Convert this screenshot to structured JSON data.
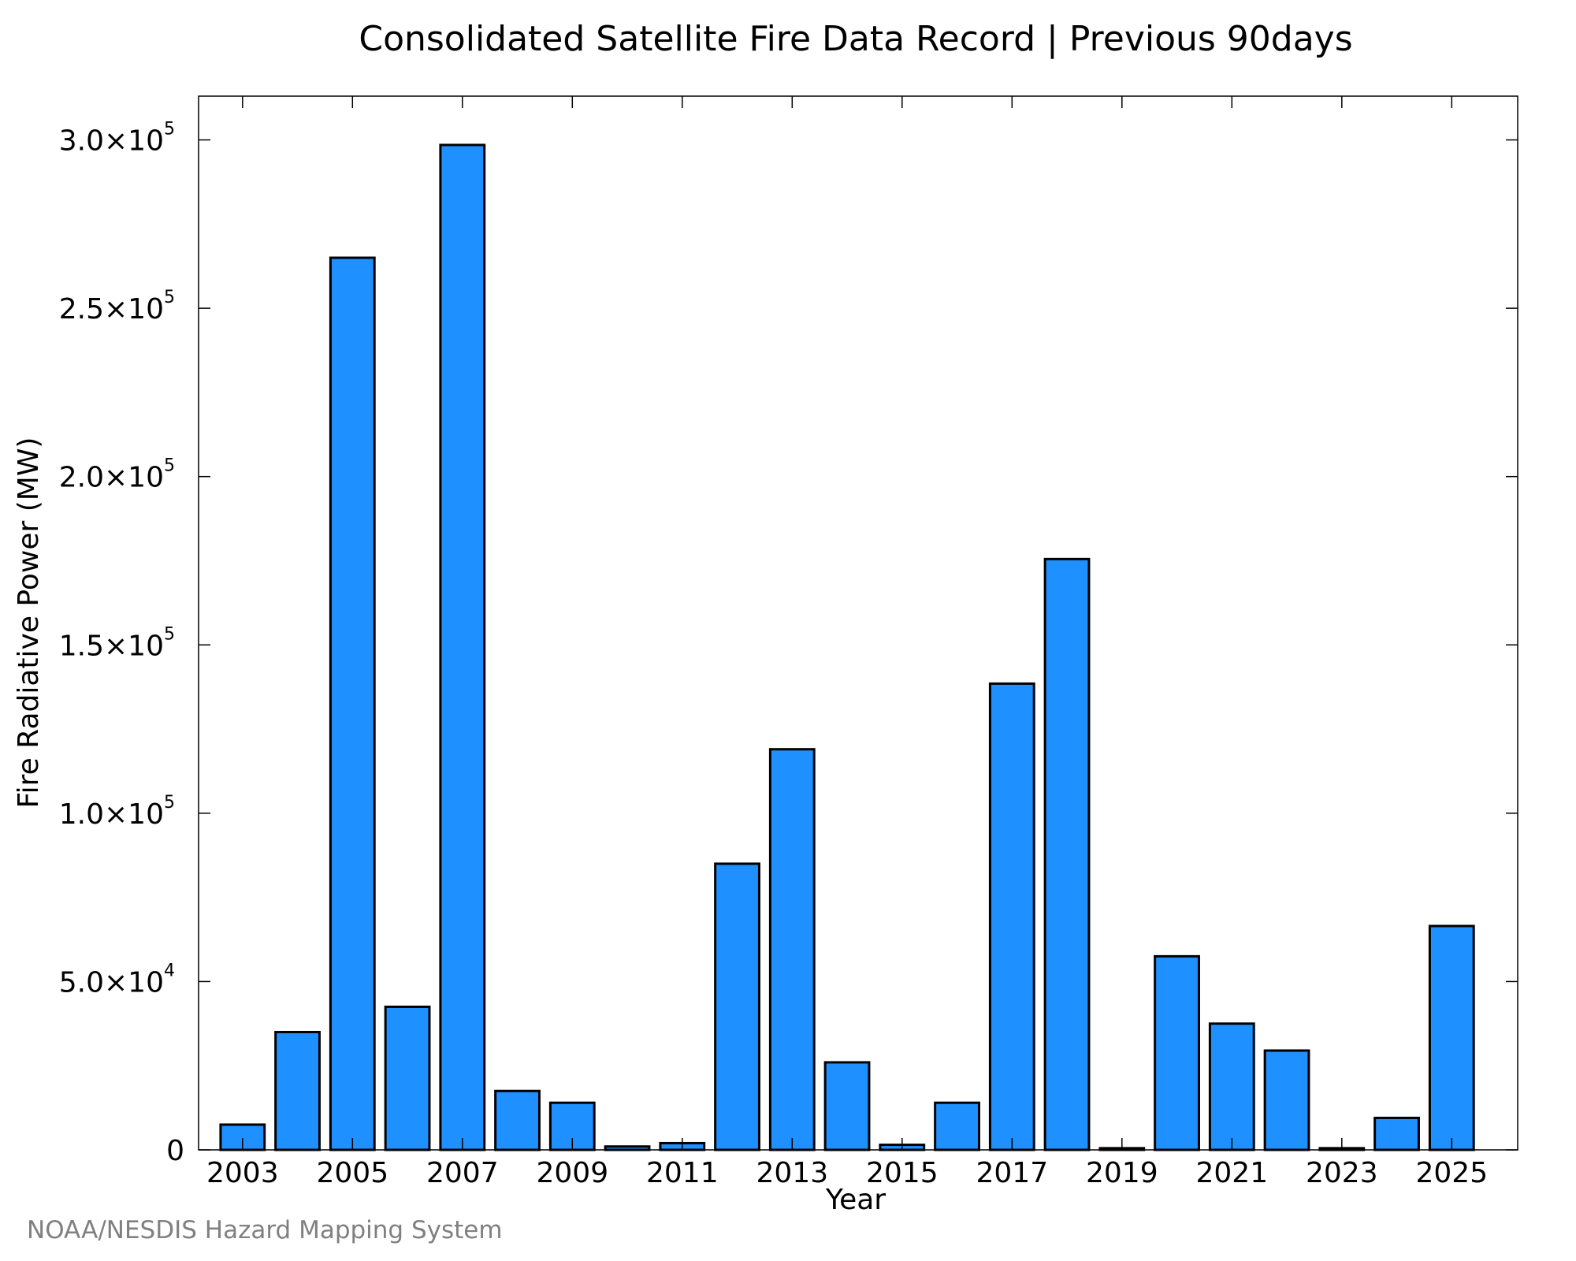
{
  "chart_data": {
    "type": "bar",
    "title": "Consolidated Satellite Fire Data Record | Previous 90days",
    "xlabel": "Year",
    "ylabel": "Fire Radiative Power (MW)",
    "credit": "NOAA/NESDIS Hazard Mapping System",
    "bar_color": "#1E90FF",
    "bar_edge_color": "#000000",
    "categories": [
      "2003",
      "2004",
      "2005",
      "2006",
      "2007",
      "2008",
      "2009",
      "2010",
      "2011",
      "2012",
      "2013",
      "2014",
      "2015",
      "2016",
      "2017",
      "2018",
      "2019",
      "2020",
      "2021",
      "2022",
      "2023",
      "2024",
      "2025"
    ],
    "values": [
      7500,
      35000,
      265000,
      42500,
      298500,
      17500,
      14000,
      1000,
      2000,
      85000,
      119000,
      26000,
      1500,
      14000,
      138500,
      175500,
      500,
      57500,
      37500,
      29500,
      500,
      9500,
      66500
    ],
    "x_tick_labels": [
      "2003",
      "2005",
      "2007",
      "2009",
      "2011",
      "2013",
      "2015",
      "2017",
      "2019",
      "2021",
      "2023",
      "2025"
    ],
    "y_ticks": [
      {
        "value": 0,
        "mantissa": "0",
        "exponent": ""
      },
      {
        "value": 50000,
        "mantissa": "5.0×10",
        "exponent": "4"
      },
      {
        "value": 100000,
        "mantissa": "1.0×10",
        "exponent": "5"
      },
      {
        "value": 150000,
        "mantissa": "1.5×10",
        "exponent": "5"
      },
      {
        "value": 200000,
        "mantissa": "2.0×10",
        "exponent": "5"
      },
      {
        "value": 250000,
        "mantissa": "2.5×10",
        "exponent": "5"
      },
      {
        "value": 300000,
        "mantissa": "3.0×10",
        "exponent": "5"
      }
    ],
    "ylim": [
      0,
      313000
    ],
    "xlim": [
      2002.2,
      2026.2
    ],
    "grid": false,
    "legend": "none"
  }
}
